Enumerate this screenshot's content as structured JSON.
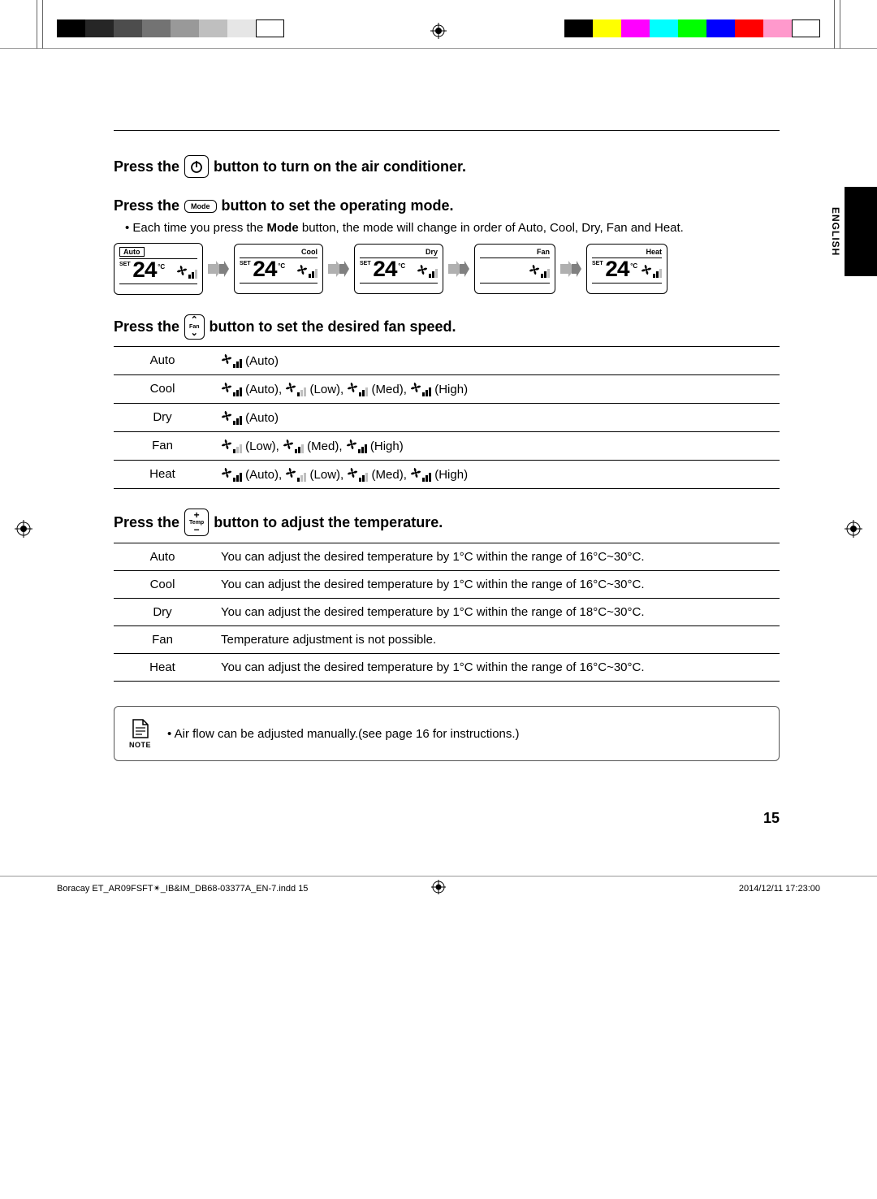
{
  "colorBarsLeft": [
    "#000000",
    "#262626",
    "#4d4d4d",
    "#737373",
    "#999999",
    "#bfbfbf",
    "#e6e6e6",
    "#ffffff"
  ],
  "colorBarsRight": [
    "#000000",
    "#ffff00",
    "#ff00ff",
    "#00ffff",
    "#00ff00",
    "#0000ff",
    "#ff0000",
    "#ff99cc",
    "#ffffff"
  ],
  "languageTab": "ENGLISH",
  "section1": {
    "prefix": "Press the",
    "suffix": "button to turn on the air conditioner."
  },
  "section2": {
    "prefix": "Press the",
    "btnLabel": "Mode",
    "suffix": "button to set the operating mode.",
    "bulletPrefix": "Each time you press the ",
    "bulletBold": "Mode",
    "bulletSuffix": " button, the mode will change in order of Auto, Cool, Dry, Fan and Heat.",
    "modes": [
      {
        "label": "Auto",
        "boxed": true,
        "align": "left",
        "temp": "24",
        "showTemp": true
      },
      {
        "label": "Cool",
        "boxed": false,
        "align": "right",
        "temp": "24",
        "showTemp": true
      },
      {
        "label": "Dry",
        "boxed": false,
        "align": "right",
        "temp": "24",
        "showTemp": true
      },
      {
        "label": "Fan",
        "boxed": false,
        "align": "right",
        "temp": "",
        "showTemp": false
      },
      {
        "label": "Heat",
        "boxed": false,
        "align": "right",
        "temp": "24",
        "showTemp": true
      }
    ],
    "setLabel": "SET",
    "degC": "°C"
  },
  "section3": {
    "prefix": "Press the",
    "btnLabel": "Fan",
    "suffix": "button to set the desired fan speed.",
    "rows": [
      {
        "mode": "Auto",
        "speeds": [
          {
            "t": "Auto",
            "b": 3
          }
        ]
      },
      {
        "mode": "Cool",
        "speeds": [
          {
            "t": "Auto",
            "b": 3
          },
          {
            "t": "Low",
            "b": 1
          },
          {
            "t": "Med",
            "b": 2
          },
          {
            "t": "High",
            "b": 3
          }
        ]
      },
      {
        "mode": "Dry",
        "speeds": [
          {
            "t": "Auto",
            "b": 3
          }
        ]
      },
      {
        "mode": "Fan",
        "speeds": [
          {
            "t": "Low",
            "b": 1
          },
          {
            "t": "Med",
            "b": 2
          },
          {
            "t": "High",
            "b": 3
          }
        ]
      },
      {
        "mode": "Heat",
        "speeds": [
          {
            "t": "Auto",
            "b": 3
          },
          {
            "t": "Low",
            "b": 1
          },
          {
            "t": "Med",
            "b": 2
          },
          {
            "t": "High",
            "b": 3
          }
        ]
      }
    ]
  },
  "section4": {
    "prefix": "Press the",
    "btnLabel": "Temp",
    "suffix": "button to adjust the temperature.",
    "rows": [
      {
        "mode": "Auto",
        "text": "You can adjust the desired temperature by 1°C within the range of 16°C~30°C."
      },
      {
        "mode": "Cool",
        "text": "You can adjust the desired temperature by 1°C within the range of 16°C~30°C."
      },
      {
        "mode": "Dry",
        "text": "You can adjust the desired temperature by 1°C within the range of 18°C~30°C."
      },
      {
        "mode": "Fan",
        "text": "Temperature adjustment is not possible."
      },
      {
        "mode": "Heat",
        "text": "You can adjust the desired temperature by 1°C within the range of 16°C~30°C."
      }
    ]
  },
  "note": {
    "label": "NOTE",
    "text": "Air flow can be adjusted manually.(see page 16 for instructions.)"
  },
  "pageNumber": "15",
  "footer": {
    "left": "Boracay ET_AR09FSFT✴_IB&IM_DB68-03377A_EN-7.indd   15",
    "right": "2014/12/11   17:23:00"
  }
}
